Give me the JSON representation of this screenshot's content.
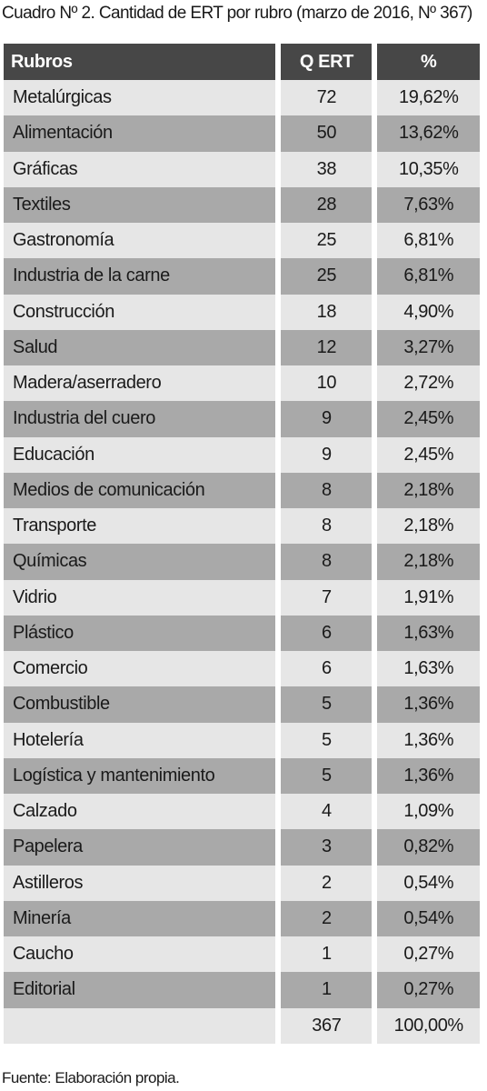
{
  "header": {
    "title": "Cuadro Nº 2. Cantidad de ERT por rubro (marzo de 2016, Nº 367)"
  },
  "table": {
    "columns": [
      "Rubros",
      "Q ERT",
      "%"
    ],
    "rows": [
      [
        "Metalúrgicas",
        72,
        "19,62%"
      ],
      [
        "Alimentación",
        50,
        "13,62%"
      ],
      [
        "Gráficas",
        38,
        "10,35%"
      ],
      [
        "Textiles",
        28,
        "7,63%"
      ],
      [
        "Gastronomía",
        25,
        "6,81%"
      ],
      [
        "Industria de la carne",
        25,
        "6,81%"
      ],
      [
        "Construcción",
        18,
        "4,90%"
      ],
      [
        "Salud",
        12,
        "3,27%"
      ],
      [
        "Madera/aserradero",
        10,
        "2,72%"
      ],
      [
        "Industria del cuero",
        9,
        "2,45%"
      ],
      [
        "Educación",
        9,
        "2,45%"
      ],
      [
        "Medios de comunicación",
        8,
        "2,18%"
      ],
      [
        "Transporte",
        8,
        "2,18%"
      ],
      [
        "Químicas",
        8,
        "2,18%"
      ],
      [
        "Vidrio",
        7,
        "1,91%"
      ],
      [
        "Plástico",
        6,
        "1,63%"
      ],
      [
        "Comercio",
        6,
        "1,63%"
      ],
      [
        "Combustible",
        5,
        "1,36%"
      ],
      [
        "Hotelería",
        5,
        "1,36%"
      ],
      [
        "Logística y mantenimiento",
        5,
        "1,36%"
      ],
      [
        "Calzado",
        4,
        "1,09%"
      ],
      [
        "Papelera",
        3,
        "0,82%"
      ],
      [
        "Astilleros",
        2,
        "0,54%"
      ],
      [
        "Minería",
        2,
        "0,54%"
      ],
      [
        "Caucho",
        1,
        "0,27%"
      ],
      [
        "Editorial",
        1,
        "0,27%"
      ]
    ],
    "total": [
      367,
      "100,00%"
    ]
  },
  "footer": {
    "source": "Fuente: Elaboración propia."
  }
}
